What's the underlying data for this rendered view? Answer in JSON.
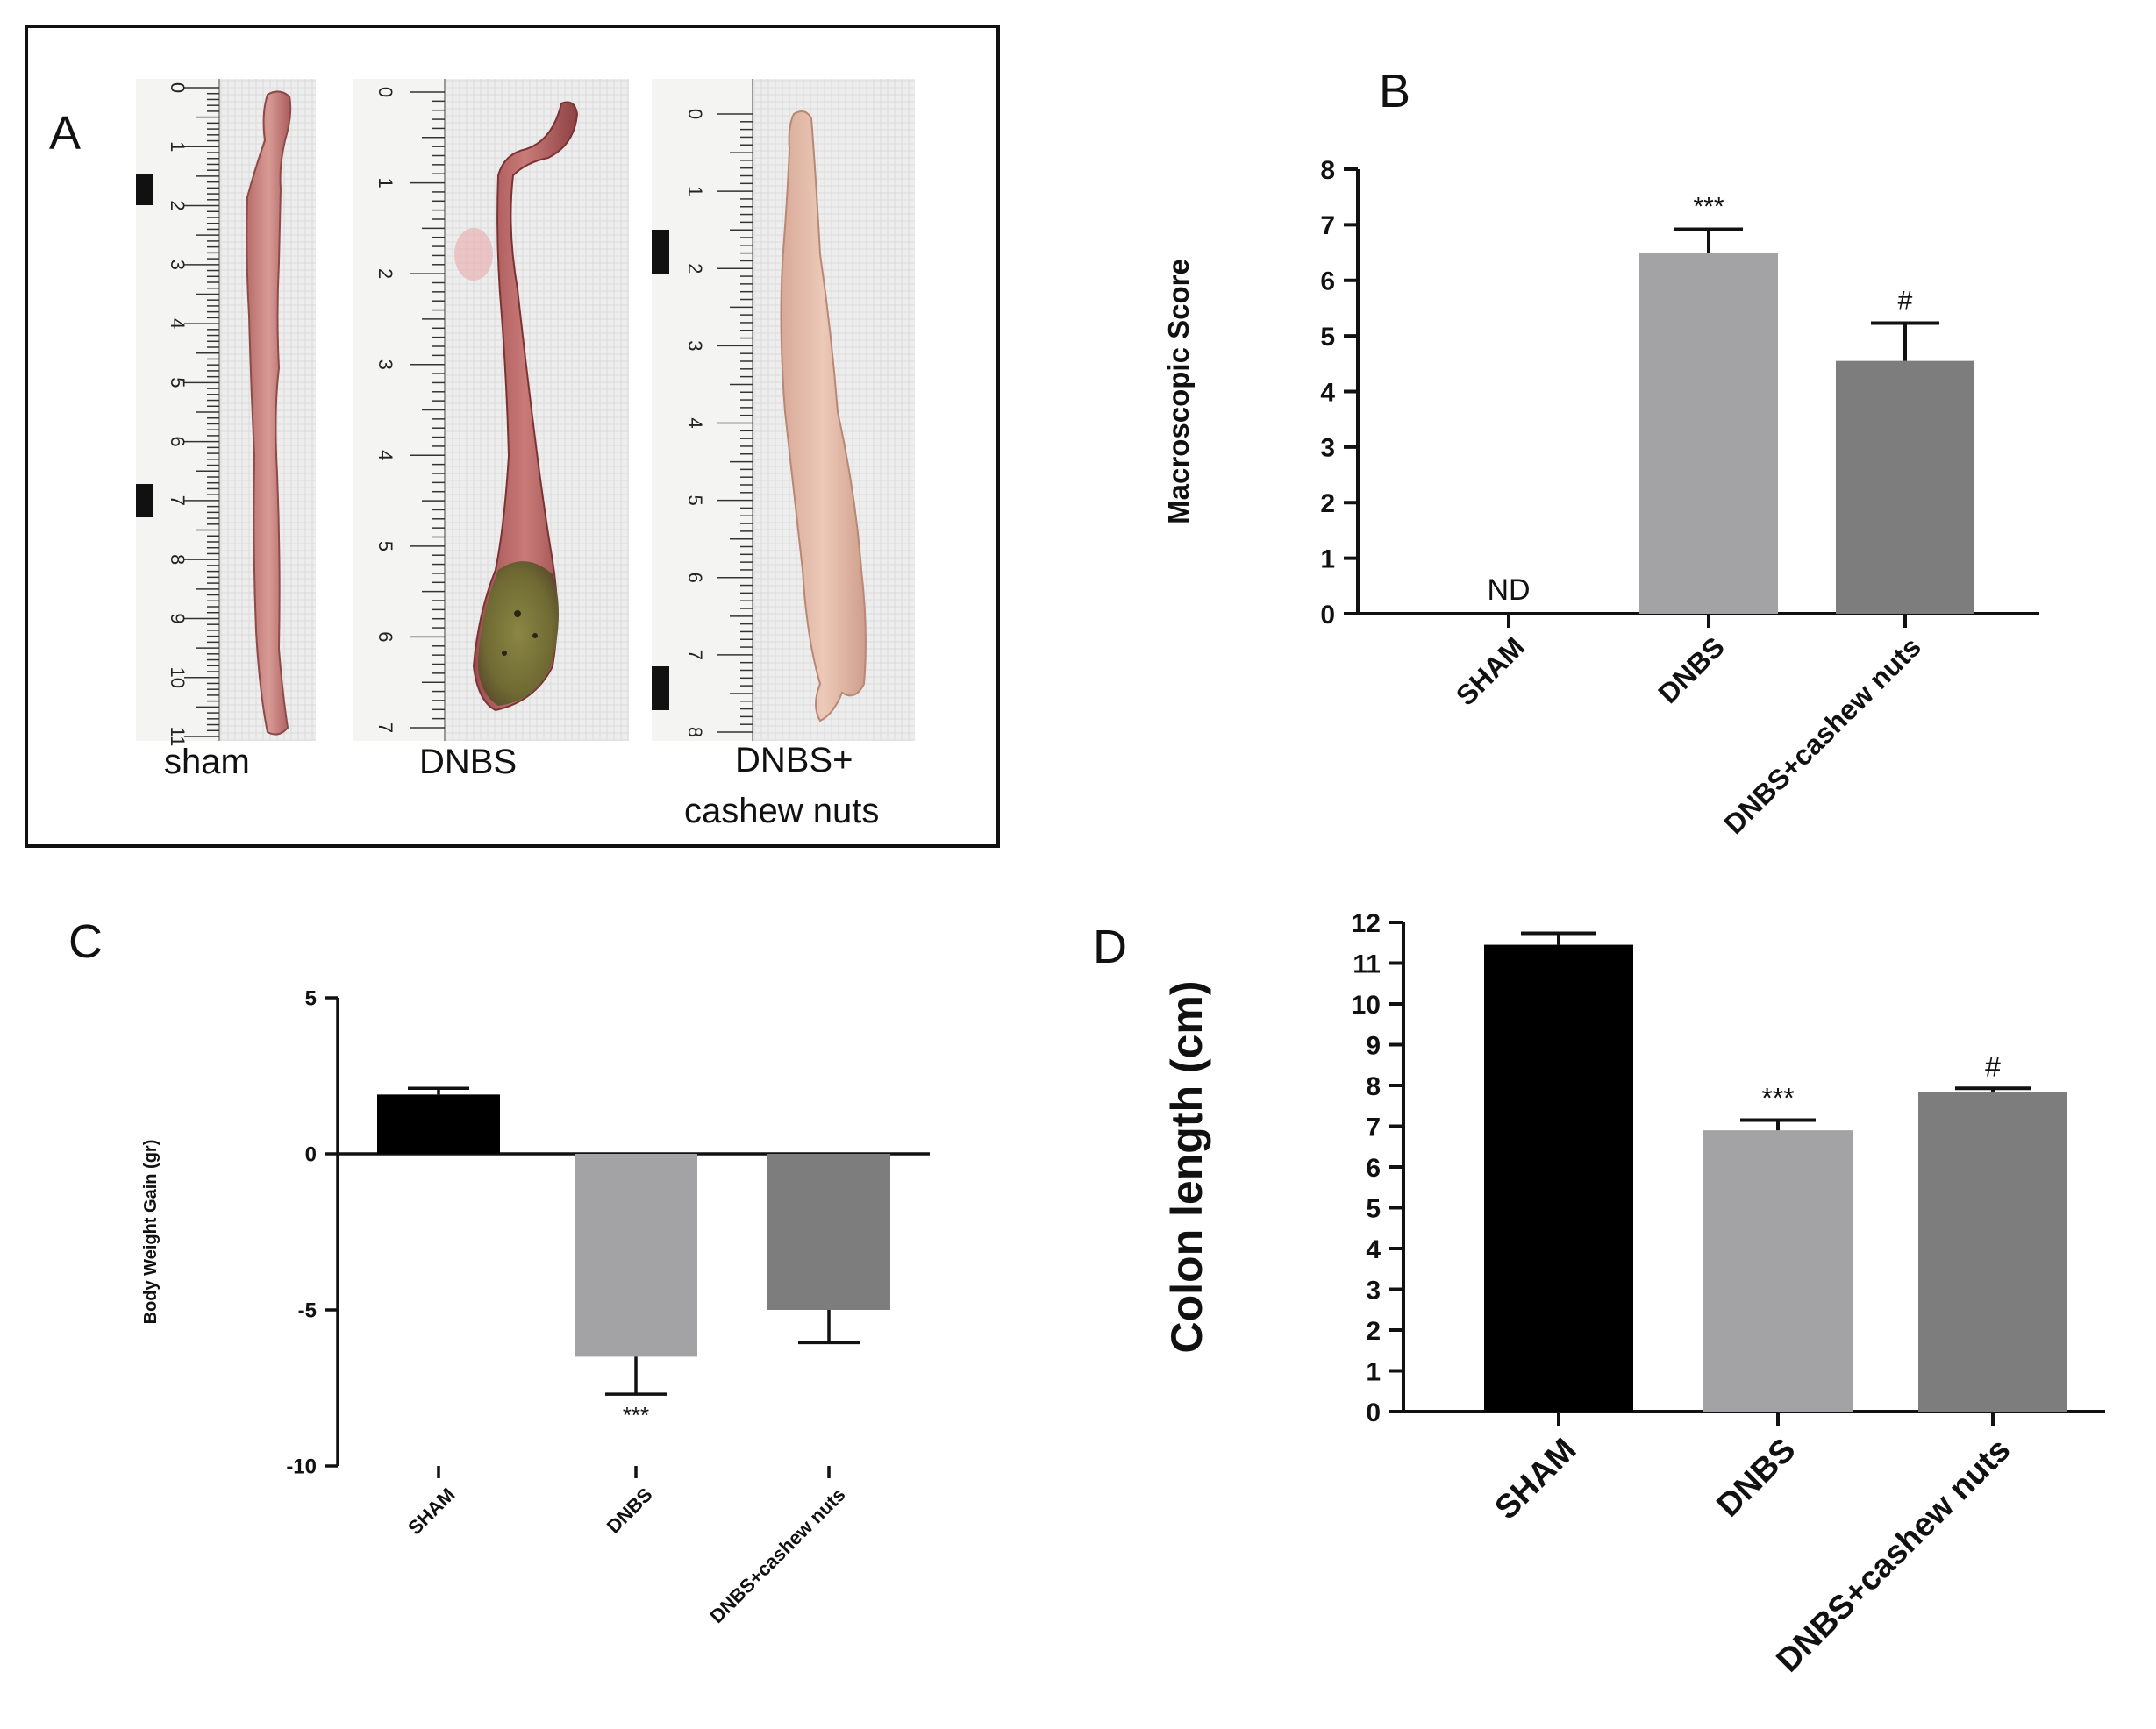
{
  "panel_a": {
    "letter": "A",
    "specimens": [
      {
        "caption": "sham",
        "ruler_numbers": [
          "0",
          "1",
          "2",
          "3",
          "4",
          "5",
          "6",
          "7",
          "8",
          "9",
          "10",
          "11"
        ]
      },
      {
        "caption": "DNBS",
        "ruler_numbers": [
          "0",
          "1",
          "2",
          "3",
          "4",
          "5",
          "6",
          "7"
        ]
      },
      {
        "caption_line1": "DNBS+",
        "caption_line2": "cashew nuts",
        "ruler_numbers": [
          "0",
          "1",
          "2",
          "3",
          "4",
          "5",
          "6",
          "7",
          "8"
        ]
      }
    ]
  },
  "chart_data": [
    {
      "panel": "B",
      "type": "bar",
      "title": "",
      "xlabel": "",
      "ylabel": "Macroscopic Score",
      "ylim": [
        0,
        8
      ],
      "yticks": [
        "0",
        "1",
        "2",
        "3",
        "4",
        "5",
        "6",
        "7",
        "8"
      ],
      "categories": [
        "SHAM",
        "DNBS",
        "DNBS+cashew nuts"
      ],
      "values": [
        0,
        6.5,
        4.55
      ],
      "errors": [
        0,
        0.42,
        0.68
      ],
      "colors": [
        "#000000",
        "#a3a3a5",
        "#7d7d7d"
      ],
      "annotations": [
        "ND",
        "***",
        "#"
      ]
    },
    {
      "panel": "C",
      "type": "bar",
      "title": "",
      "xlabel": "",
      "ylabel": "Body Weight Gain (gr)",
      "ylim": [
        -10,
        5
      ],
      "yticks": [
        "-10",
        "-5",
        "0",
        "5"
      ],
      "categories": [
        "SHAM",
        "DNBS",
        "DNBS+cashew nuts"
      ],
      "values": [
        1.9,
        -6.5,
        -5.0
      ],
      "errors": [
        0.2,
        1.2,
        1.05
      ],
      "colors": [
        "#000000",
        "#a3a3a5",
        "#7d7d7d"
      ],
      "annotations": [
        "",
        "***",
        ""
      ]
    },
    {
      "panel": "D",
      "type": "bar",
      "title": "",
      "xlabel": "",
      "ylabel": "Colon length  (cm)",
      "ylim": [
        0,
        12
      ],
      "yticks": [
        "0",
        "1",
        "2",
        "3",
        "4",
        "5",
        "6",
        "7",
        "8",
        "9",
        "10",
        "11",
        "12"
      ],
      "categories": [
        "SHAM",
        "DNBS",
        "DNBS+cashew nuts"
      ],
      "values": [
        11.45,
        6.9,
        7.85
      ],
      "errors": [
        0.28,
        0.25,
        0.08
      ],
      "colors": [
        "#000000",
        "#a3a3a5",
        "#7d7d7d"
      ],
      "annotations": [
        "",
        "***",
        "#"
      ]
    }
  ]
}
